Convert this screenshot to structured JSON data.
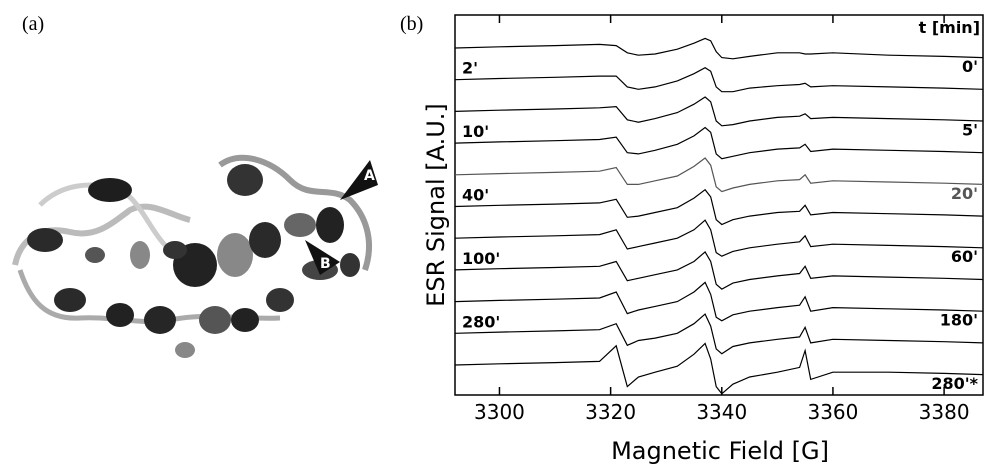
{
  "panels": [
    "(a)",
    "(b)"
  ],
  "structure_labels": [
    "A",
    "B"
  ],
  "chart_data": {
    "type": "line",
    "xlabel": "Magnetic Field [G]",
    "ylabel": "ESR Signal [A.U.]",
    "legend_title": "t [min]",
    "xlim": [
      3292,
      3387
    ],
    "xticks": [
      3300,
      3320,
      3340,
      3360,
      3380
    ],
    "x": [
      3292,
      3300,
      3310,
      3318,
      3321,
      3323,
      3325,
      3328,
      3332,
      3335,
      3337,
      3338,
      3339,
      3340,
      3342,
      3345,
      3350,
      3354,
      3355,
      3356,
      3360,
      3370,
      3380,
      3387
    ],
    "series": [
      {
        "name": "0'",
        "color": "#000000",
        "values": [
          0,
          0.1,
          0.2,
          0.3,
          0.2,
          -0.4,
          -0.6,
          -0.5,
          -0.1,
          0.4,
          0.8,
          0.6,
          -0.3,
          -0.8,
          -0.9,
          -0.7,
          -0.4,
          -0.4,
          -0.5,
          -0.5,
          -0.4,
          -0.6,
          -0.7,
          -0.8
        ]
      },
      {
        "name": "2'",
        "color": "#000000",
        "values": [
          0,
          0.1,
          0.2,
          0.3,
          0.3,
          -0.6,
          -0.8,
          -0.6,
          -0.1,
          0.5,
          1.0,
          0.7,
          -0.6,
          -1.0,
          -1.0,
          -0.7,
          -0.5,
          -0.4,
          -0.3,
          -0.6,
          -0.5,
          -0.6,
          -0.7,
          -0.8
        ]
      },
      {
        "name": "5'",
        "color": "#000000",
        "values": [
          0,
          0.1,
          0.2,
          0.3,
          0.4,
          -0.7,
          -0.9,
          -0.6,
          -0.1,
          0.6,
          1.2,
          0.8,
          -0.8,
          -1.2,
          -1.1,
          -0.8,
          -0.5,
          -0.4,
          -0.2,
          -0.6,
          -0.5,
          -0.6,
          -0.7,
          -0.8
        ]
      },
      {
        "name": "10'",
        "color": "#000000",
        "values": [
          0,
          0.1,
          0.2,
          0.3,
          0.5,
          -0.8,
          -0.9,
          -0.6,
          -0.1,
          0.6,
          1.3,
          0.9,
          -0.9,
          -1.3,
          -1.1,
          -0.8,
          -0.5,
          -0.4,
          -0.1,
          -0.7,
          -0.5,
          -0.6,
          -0.7,
          -0.8
        ]
      },
      {
        "name": "20'",
        "color": "#555555",
        "values": [
          0,
          0.1,
          0.2,
          0.3,
          0.6,
          -0.8,
          -0.8,
          -0.5,
          -0.1,
          0.7,
          1.4,
          0.8,
          -1.0,
          -1.4,
          -1.1,
          -0.8,
          -0.5,
          -0.4,
          0,
          -0.7,
          -0.5,
          -0.6,
          -0.7,
          -0.8
        ]
      },
      {
        "name": "40'",
        "color": "#000000",
        "values": [
          0,
          0.1,
          0.2,
          0.3,
          0.6,
          -0.9,
          -0.8,
          -0.5,
          -0.1,
          0.7,
          1.4,
          0.8,
          -1.1,
          -1.5,
          -1.1,
          -0.8,
          -0.5,
          -0.4,
          0.1,
          -0.7,
          -0.5,
          -0.6,
          -0.7,
          -0.8
        ]
      },
      {
        "name": "60'",
        "color": "#000000",
        "values": [
          0,
          0.1,
          0.2,
          0.3,
          0.7,
          -0.9,
          -0.7,
          -0.4,
          0,
          0.7,
          1.5,
          0.7,
          -1.2,
          -1.5,
          -1.1,
          -0.8,
          -0.5,
          -0.3,
          0.2,
          -0.7,
          -0.5,
          -0.6,
          -0.7,
          -0.8
        ]
      },
      {
        "name": "100'",
        "color": "#000000",
        "values": [
          0,
          0.1,
          0.2,
          0.3,
          0.7,
          -0.9,
          -0.7,
          -0.4,
          0,
          0.7,
          1.5,
          0.7,
          -1.2,
          -1.6,
          -1.1,
          -0.8,
          -0.5,
          -0.3,
          0.3,
          -0.7,
          -0.5,
          -0.6,
          -0.7,
          -0.8
        ]
      },
      {
        "name": "180'",
        "color": "#000000",
        "values": [
          0,
          0.1,
          0.2,
          0.3,
          0.8,
          -1.0,
          -0.7,
          -0.4,
          0,
          0.8,
          1.6,
          0.6,
          -1.3,
          -1.6,
          -1.1,
          -0.8,
          -0.5,
          -0.3,
          0.4,
          -0.8,
          -0.5,
          -0.6,
          -0.7,
          -0.8
        ]
      },
      {
        "name": "280'",
        "color": "#000000",
        "values": [
          0,
          0.1,
          0.2,
          0.3,
          0.8,
          -1.0,
          -0.6,
          -0.4,
          0,
          0.8,
          1.6,
          0.6,
          -1.3,
          -1.7,
          -1.1,
          -0.8,
          -0.5,
          -0.3,
          0.5,
          -0.8,
          -0.5,
          -0.6,
          -0.7,
          -0.8
        ]
      },
      {
        "name": "280'*",
        "color": "#000000",
        "values": [
          0,
          0.1,
          0.2,
          0.3,
          1.6,
          -1.8,
          -1.0,
          -0.6,
          -0.1,
          0.9,
          1.8,
          0.5,
          -1.8,
          -2.4,
          -1.6,
          -1.0,
          -0.6,
          -0.2,
          1.2,
          -1.2,
          -0.6,
          -0.6,
          -0.7,
          -0.8
        ]
      }
    ]
  }
}
